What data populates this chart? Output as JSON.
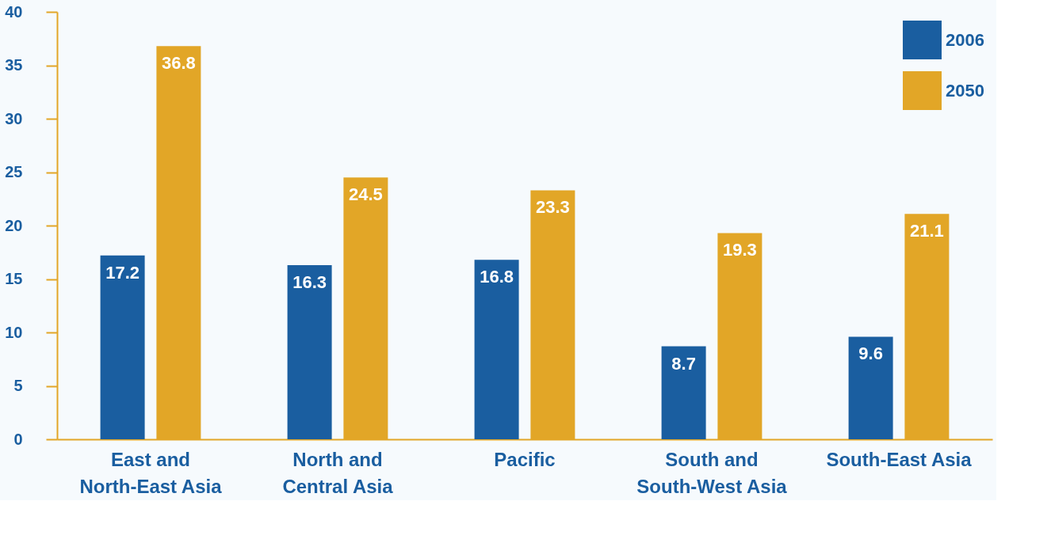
{
  "chart_data": {
    "type": "bar",
    "categories": [
      "East and North-East Asia",
      "North and Central Asia",
      "Pacific",
      "South and South-West Asia",
      "South-East Asia"
    ],
    "series": [
      {
        "name": "2006",
        "color": "#1a5ea0",
        "values": [
          17.2,
          16.3,
          16.8,
          8.7,
          9.6
        ]
      },
      {
        "name": "2050",
        "color": "#e2a627",
        "values": [
          36.8,
          24.5,
          23.3,
          19.3,
          21.1
        ]
      }
    ],
    "ylim": [
      0,
      40
    ],
    "yticks": [
      0,
      5,
      10,
      15,
      20,
      25,
      30,
      35,
      40
    ],
    "grid": false,
    "legend": "top right",
    "data_labels": true
  }
}
